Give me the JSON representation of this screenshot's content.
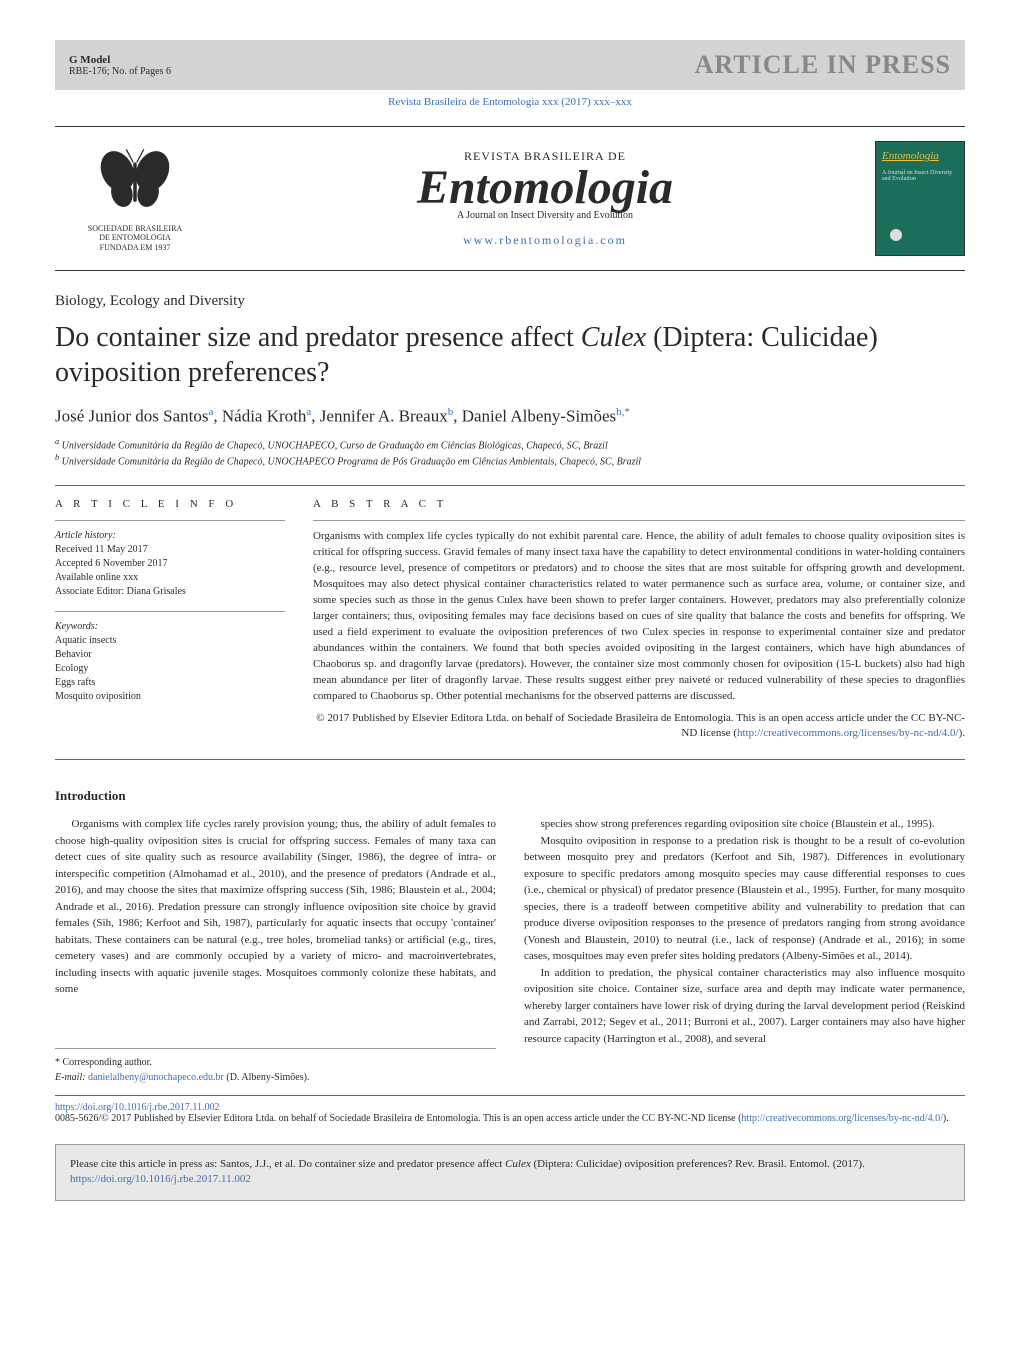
{
  "colors": {
    "link": "#3b6fb6",
    "header_bg": "#d3d3d3",
    "press_text": "#888888",
    "cover_bg": "#1a6e5a",
    "cover_title": "#f0c040",
    "footer_bg": "#e8e8e8"
  },
  "header": {
    "gmodel": "G Model",
    "ref": "RBE-176;   No. of Pages 6",
    "press": "ARTICLE IN PRESS",
    "cite_line": "Revista Brasileira de Entomologia xxx (2017) xxx–xxx"
  },
  "journal": {
    "revista": "REVISTA BRASILEIRA DE",
    "title": "Entomologia",
    "subtitle": "A Journal on Insect Diversity and Evolution",
    "url": "www.rbentomologia.com",
    "logo_lines": [
      "SOCIEDADE BRASILEIRA",
      "DE ENTOMOLOGIA",
      "FUNDADA EM 1937"
    ],
    "cover_title": "Entomologia",
    "cover_sub": "A Journal on Insect Diversity and Evolution"
  },
  "article": {
    "section": "Biology, Ecology and Diversity",
    "title_html": "Do container size and predator presence affect <em>Culex</em> (Diptera: Culicidae) oviposition preferences?",
    "authors": [
      {
        "name": "José Junior dos Santos",
        "aff": "a"
      },
      {
        "name": "Nádia Kroth",
        "aff": "a"
      },
      {
        "name": "Jennifer A. Breaux",
        "aff": "b"
      },
      {
        "name": "Daniel Albeny-Simões",
        "aff": "b,*"
      }
    ],
    "affiliations": [
      {
        "label": "a",
        "text": "Universidade Comunitária da Região de Chapecó, UNOCHAPECO, Curso de Graduação em Ciências Biológicas, Chapecó, SC, Brazil"
      },
      {
        "label": "b",
        "text": "Universidade Comunitária da Região de Chapecó, UNOCHAPECO Programa de Pós Graduação em Ciências Ambientais, Chapecó, SC, Brazil"
      }
    ]
  },
  "info": {
    "head": "A R T I C L E   I N F O",
    "history_label": "Article history:",
    "history": [
      "Received 11 May 2017",
      "Accepted 6 November 2017",
      "Available online xxx",
      "Associate Editor: Diana Grisales"
    ],
    "keywords_label": "Keywords:",
    "keywords": [
      "Aquatic insects",
      "Behavior",
      "Ecology",
      "Eggs rafts",
      "Mosquito oviposition"
    ]
  },
  "abstract": {
    "head": "A B S T R A C T",
    "text": "Organisms with complex life cycles typically do not exhibit parental care. Hence, the ability of adult females to choose quality oviposition sites is critical for offspring success. Gravid females of many insect taxa have the capability to detect environmental conditions in water-holding containers (e.g., resource level, presence of competitors or predators) and to choose the sites that are most suitable for offspring growth and development. Mosquitoes may also detect physical container characteristics related to water permanence such as surface area, volume, or container size, and some species such as those in the genus Culex have been shown to prefer larger containers. However, predators may also preferentially colonize larger containers; thus, ovipositing females may face decisions based on cues of site quality that balance the costs and benefits for offspring. We used a field experiment to evaluate the oviposition preferences of two Culex species in response to experimental container size and predator abundances within the containers. We found that both species avoided ovipositing in the largest containers, which have high abundances of Chaoborus sp. and dragonfly larvae (predators). However, the container size most commonly chosen for oviposition (15-L buckets) also had high mean abundance per liter of dragonfly larvae. These results suggest either prey naiveté or reduced vulnerability of these species to dragonflies compared to Chaoborus sp. Other potential mechanisms for the observed patterns are discussed.",
    "copyright": "© 2017 Published by Elsevier Editora Ltda. on behalf of Sociedade Brasileira de Entomologia. This is an open access article under the CC BY-NC-ND license (",
    "license_url": "http://creativecommons.org/licenses/by-nc-nd/4.0/",
    "close": ")."
  },
  "body": {
    "heading": "Introduction",
    "p1": "Organisms with complex life cycles rarely provision young; thus, the ability of adult females to choose high-quality oviposition sites is crucial for offspring success. Females of many taxa can detect cues of site quality such as resource availability (Singer, 1986), the degree of intra- or interspecific competition (Almohamad et al., 2010), and the presence of predators (Andrade et al., 2016), and may choose the sites that maximize offspring success (Sih, 1986; Blaustein et al., 2004; Andrade et al., 2016). Predation pressure can strongly influence oviposition site choice by gravid females (Sih, 1986; Kerfoot and Sih, 1987), particularly for aquatic insects that occupy 'container' habitats. These containers can be natural (e.g., tree holes, bromeliad tanks) or artificial (e.g., tires, cemetery vases) and are commonly occupied by a variety of micro- and macroinvertebrates, including insects with aquatic juvenile stages. Mosquitoes commonly colonize these habitats, and some",
    "p2": "species show strong preferences regarding oviposition site choice (Blaustein et al., 1995).",
    "p3": "Mosquito oviposition in response to a predation risk is thought to be a result of co-evolution between mosquito prey and predators (Kerfoot and Sih, 1987). Differences in evolutionary exposure to specific predators among mosquito species may cause differential responses to cues (i.e., chemical or physical) of predator presence (Blaustein et al., 1995). Further, for many mosquito species, there is a tradeoff between competitive ability and vulnerability to predation that can produce diverse oviposition responses to the presence of predators ranging from strong avoidance (Vonesh and Blaustein, 2010) to neutral (i.e., lack of response) (Andrade et al., 2016); in some cases, mosquitoes may even prefer sites holding predators (Albeny-Simões et al., 2014).",
    "p4": "In addition to predation, the physical container characteristics may also influence mosquito oviposition site choice. Container size, surface area and depth may indicate water permanence, whereby larger containers have lower risk of drying during the larval development period (Reiskind and Zarrabi, 2012; Segev et al., 2011; Burroni et al., 2007). Larger containers may also have higher resource capacity (Harrington et al., 2008), and several"
  },
  "footnote": {
    "corr": "* Corresponding author.",
    "email_label": "E-mail:",
    "email": "danielalbeny@unochapeco.edu.br",
    "email_suffix": " (D. Albeny-Simões)."
  },
  "doi": {
    "url": "https://doi.org/10.1016/j.rbe.2017.11.002",
    "line": "0085-5626/© 2017 Published by Elsevier Editora Ltda. on behalf of Sociedade Brasileira de Entomologia. This is an open access article under the CC BY-NC-ND license (",
    "license_url": "http://creativecommons.org/licenses/by-nc-nd/4.0/",
    "close": ")."
  },
  "footer": {
    "prefix": "Please cite this article in press as: Santos, J.J., et al. Do container size and predator presence affect ",
    "italic": "Culex",
    "middle": " (Diptera: Culicidae) oviposition preferences? Rev. Brasil. Entomol. (2017). ",
    "url": "https://doi.org/10.1016/j.rbe.2017.11.002"
  }
}
